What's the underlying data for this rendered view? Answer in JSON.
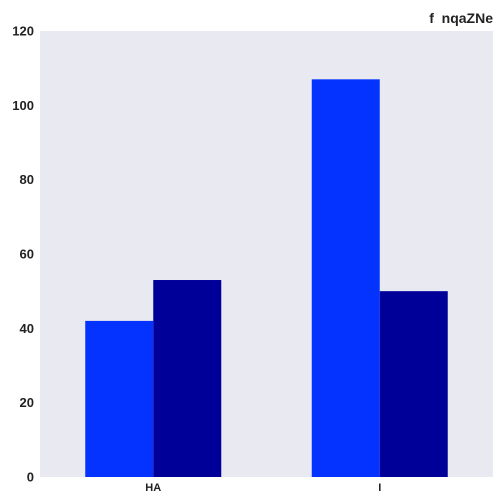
{
  "chart_data": {
    "type": "bar",
    "title": "f  nqaZNe",
    "xlabel": "",
    "ylabel": "",
    "categories": [
      "HA",
      "I"
    ],
    "series": [
      {
        "values": [
          42,
          107
        ],
        "color": "#0433ff"
      },
      {
        "values": [
          53,
          50
        ],
        "color": "#000099"
      }
    ],
    "ylim": [
      0,
      120
    ],
    "yticks": [
      0,
      20,
      40,
      60,
      80,
      100,
      120
    ],
    "grid": false,
    "legend": "none"
  }
}
